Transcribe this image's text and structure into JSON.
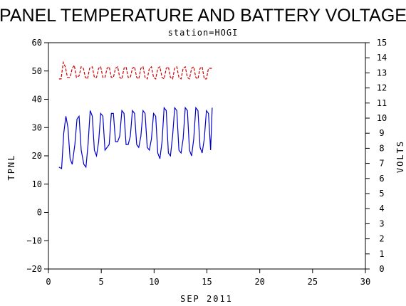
{
  "chart_data": {
    "type": "line",
    "title": "PANEL TEMPERATURE AND BATTERY VOLTAGE",
    "subtitle": "station=HOGI",
    "xlabel": "SEP 2011",
    "ylabel_left": "TPNL",
    "ylabel_right": "VOLTS",
    "xlim": [
      0,
      30
    ],
    "ylim_left": [
      -20,
      60
    ],
    "ylim_right": [
      0,
      15
    ],
    "x_ticks": [
      0,
      5,
      10,
      15,
      20,
      25,
      30
    ],
    "y_left_ticks": [
      -20,
      -10,
      0,
      10,
      20,
      30,
      40,
      50,
      60
    ],
    "y_right_ticks": [
      0,
      1,
      2,
      3,
      4,
      5,
      6,
      7,
      8,
      9,
      10,
      11,
      12,
      13,
      14,
      15
    ],
    "grid": false,
    "series": [
      {
        "axis": "left",
        "color": "#0000cc",
        "style": "solid",
        "x": [
          1.0,
          1.25,
          1.45,
          1.65,
          1.85,
          2.05,
          2.25,
          2.5,
          2.7,
          2.9,
          3.1,
          3.35,
          3.55,
          3.75,
          3.95,
          4.15,
          4.35,
          4.55,
          4.75,
          4.95,
          5.15,
          5.35,
          5.55,
          5.75,
          5.95,
          6.15,
          6.35,
          6.55,
          6.75,
          6.95,
          7.15,
          7.35,
          7.55,
          7.75,
          7.95,
          8.15,
          8.35,
          8.55,
          8.75,
          8.95,
          9.15,
          9.35,
          9.55,
          9.75,
          9.95,
          10.15,
          10.35,
          10.55,
          10.75,
          10.95,
          11.15,
          11.35,
          11.55,
          11.75,
          11.95,
          12.15,
          12.35,
          12.55,
          12.75,
          12.95,
          13.15,
          13.35,
          13.55,
          13.75,
          13.95,
          14.15,
          14.35,
          14.55,
          14.75,
          14.95,
          15.15,
          15.35,
          15.5
        ],
        "y": [
          16,
          15.5,
          28,
          34,
          30,
          19,
          17,
          24,
          33,
          34,
          22,
          17,
          16,
          24,
          36,
          34,
          22,
          20,
          25,
          35,
          34,
          22,
          23,
          24,
          35,
          35,
          25,
          25,
          27,
          36,
          35,
          24,
          24,
          27,
          36,
          35,
          24,
          23,
          27,
          36,
          35,
          23,
          22,
          26,
          35,
          34,
          21,
          19,
          25,
          37,
          36,
          21,
          20,
          27,
          37,
          36,
          22,
          21,
          26,
          37,
          36,
          22,
          20,
          26,
          37,
          36,
          23,
          21,
          26,
          36,
          35,
          22,
          37
        ]
      },
      {
        "axis": "right",
        "color": "#cc0000",
        "style": "dashed",
        "x": [
          1.0,
          1.2,
          1.4,
          1.6,
          1.8,
          2.05,
          2.25,
          2.45,
          2.65,
          2.9,
          3.1,
          3.3,
          3.5,
          3.7,
          3.9,
          4.15,
          4.35,
          4.55,
          4.75,
          4.95,
          5.15,
          5.35,
          5.55,
          5.75,
          5.95,
          6.15,
          6.35,
          6.55,
          6.75,
          6.95,
          7.15,
          7.35,
          7.55,
          7.75,
          7.95,
          8.15,
          8.35,
          8.55,
          8.75,
          8.95,
          9.15,
          9.35,
          9.55,
          9.75,
          9.95,
          10.15,
          10.35,
          10.55,
          10.75,
          10.95,
          11.15,
          11.35,
          11.55,
          11.75,
          11.95,
          12.15,
          12.35,
          12.55,
          12.75,
          12.95,
          13.15,
          13.35,
          13.55,
          13.75,
          13.95,
          14.15,
          14.35,
          14.55,
          14.75,
          14.95,
          15.15,
          15.35,
          15.5
        ],
        "y": [
          12.6,
          12.6,
          13.7,
          13.4,
          12.7,
          12.7,
          13.3,
          13.5,
          12.7,
          12.8,
          13.4,
          13.3,
          12.7,
          12.6,
          13.3,
          13.4,
          12.7,
          12.7,
          13.3,
          13.4,
          12.7,
          12.7,
          13.3,
          13.4,
          12.7,
          12.7,
          13.3,
          13.4,
          12.7,
          12.6,
          13.3,
          13.4,
          12.7,
          12.7,
          13.3,
          13.4,
          12.7,
          12.6,
          13.3,
          13.4,
          12.7,
          12.6,
          13.3,
          13.4,
          12.7,
          12.6,
          13.3,
          13.4,
          12.7,
          12.6,
          13.3,
          13.4,
          12.7,
          12.6,
          13.3,
          13.4,
          12.7,
          12.6,
          13.3,
          13.4,
          12.7,
          12.6,
          13.3,
          13.4,
          12.7,
          12.6,
          13.3,
          13.4,
          12.6,
          12.6,
          13.3,
          13.3,
          13.3
        ]
      }
    ]
  }
}
